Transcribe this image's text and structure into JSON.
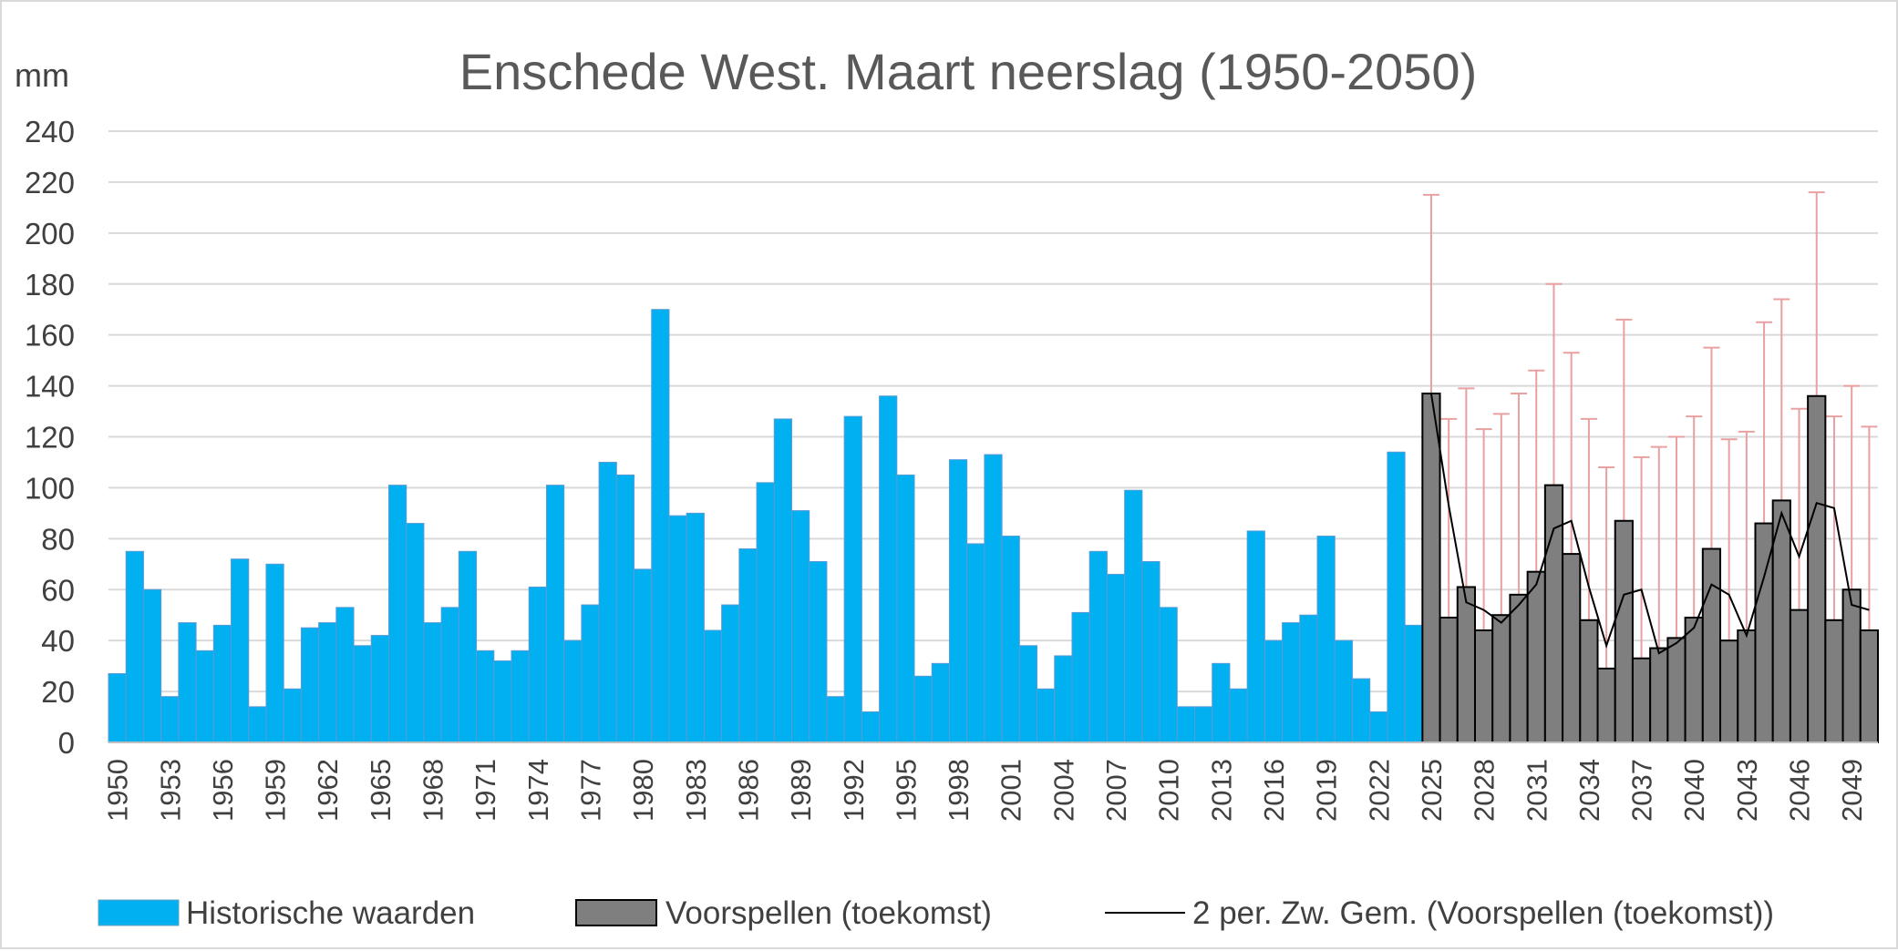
{
  "chart_data": {
    "type": "bar",
    "title": "Enschede West. Maart neerslag (1950-2050)",
    "ylabel": "mm",
    "ylim": [
      0,
      240
    ],
    "yticks": [
      0,
      20,
      40,
      60,
      80,
      100,
      120,
      140,
      160,
      180,
      200,
      220,
      240
    ],
    "grid": true,
    "legend_position": "bottom",
    "colors": {
      "historical": "#00b0f0",
      "forecast": "#7f7f7f",
      "moving_average": "#000000",
      "error_bar": "#e8a0a0",
      "grid": "#d9d9d9"
    },
    "x_tick_labels": [
      "1950",
      "1953",
      "1956",
      "1959",
      "1962",
      "1965",
      "1968",
      "1971",
      "1974",
      "1977",
      "1980",
      "1983",
      "1986",
      "1989",
      "1992",
      "1995",
      "1998",
      "2001",
      "2004",
      "2007",
      "2010",
      "2013",
      "2016",
      "2019",
      "2022",
      "2025",
      "2028",
      "2031",
      "2034",
      "2037",
      "2040",
      "2043",
      "2046",
      "2049"
    ],
    "series": [
      {
        "name": "Historische waarden",
        "kind": "bar",
        "x": [
          1950,
          1951,
          1952,
          1953,
          1954,
          1955,
          1956,
          1957,
          1958,
          1959,
          1960,
          1961,
          1962,
          1963,
          1964,
          1965,
          1966,
          1967,
          1968,
          1969,
          1970,
          1971,
          1972,
          1973,
          1974,
          1975,
          1976,
          1977,
          1978,
          1979,
          1980,
          1981,
          1982,
          1983,
          1984,
          1985,
          1986,
          1987,
          1988,
          1989,
          1990,
          1991,
          1992,
          1993,
          1994,
          1995,
          1996,
          1997,
          1998,
          1999,
          2000,
          2001,
          2002,
          2003,
          2004,
          2005,
          2006,
          2007,
          2008,
          2009,
          2010,
          2011,
          2012,
          2013,
          2014,
          2015,
          2016,
          2017,
          2018,
          2019,
          2020,
          2021,
          2022,
          2023,
          2024
        ],
        "values": [
          27,
          75,
          60,
          18,
          47,
          36,
          46,
          72,
          14,
          70,
          21,
          45,
          47,
          53,
          38,
          42,
          101,
          86,
          47,
          53,
          75,
          36,
          32,
          36,
          61,
          101,
          40,
          54,
          110,
          105,
          68,
          170,
          89,
          90,
          44,
          54,
          76,
          102,
          127,
          91,
          71,
          18,
          128,
          12,
          136,
          105,
          26,
          31,
          111,
          78,
          113,
          81,
          38,
          21,
          34,
          51,
          75,
          66,
          99,
          71,
          53,
          14,
          14,
          31,
          21,
          83,
          40,
          47,
          50,
          81,
          40,
          25,
          12,
          114,
          46
        ]
      },
      {
        "name": "Voorspellen (toekomst)",
        "kind": "bar",
        "x": [
          2025,
          2026,
          2027,
          2028,
          2029,
          2030,
          2031,
          2032,
          2033,
          2034,
          2035,
          2036,
          2037,
          2038,
          2039,
          2040,
          2041,
          2042,
          2043,
          2044,
          2045,
          2046,
          2047,
          2048,
          2049,
          2050
        ],
        "values": [
          137,
          49,
          61,
          44,
          50,
          58,
          67,
          101,
          74,
          48,
          29,
          87,
          33,
          37,
          41,
          49,
          76,
          40,
          44,
          86,
          95,
          52,
          136,
          48,
          60,
          44
        ],
        "upper_error": [
          215,
          127,
          139,
          123,
          129,
          137,
          146,
          180,
          153,
          127,
          108,
          166,
          112,
          116,
          120,
          128,
          155,
          119,
          122,
          165,
          174,
          131,
          216,
          128,
          140,
          124
        ]
      },
      {
        "name": "2 per. Zw. Gem. (Voorspellen (toekomst))",
        "kind": "line",
        "x": [
          2026,
          2027,
          2028,
          2029,
          2030,
          2031,
          2032,
          2033,
          2034,
          2035,
          2036,
          2037,
          2038,
          2039,
          2040,
          2041,
          2042,
          2043,
          2044,
          2045,
          2046,
          2047,
          2048,
          2049,
          2050
        ],
        "values": [
          93,
          55,
          52,
          47,
          54,
          62,
          84,
          87,
          61,
          38,
          58,
          60,
          35,
          39,
          45,
          62,
          58,
          42,
          65,
          90,
          73,
          94,
          92,
          54,
          52
        ]
      }
    ]
  }
}
